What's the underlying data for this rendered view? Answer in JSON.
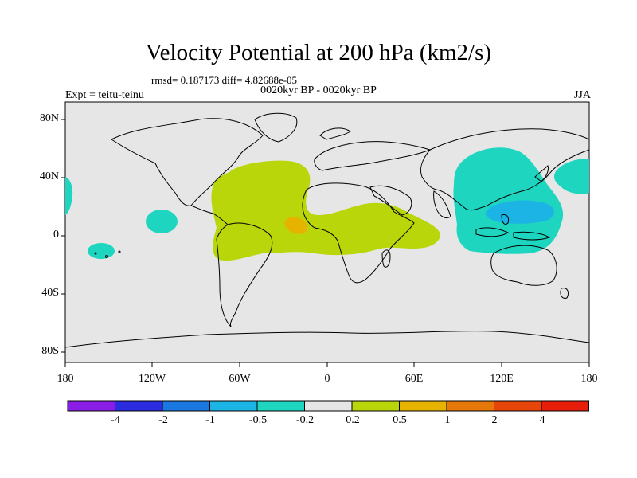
{
  "title": "Velocity Potential at 200 hPa (km2/s)",
  "stats_line": "rmsd= 0.187173 diff= 4.82688e-05",
  "left_label": "Expt = teitu-teinu",
  "center_label": "0020kyr BP - 0020kyr BP",
  "right_label": "JJA",
  "lat_labels": [
    "80N",
    "40N",
    "0",
    "40S",
    "80S"
  ],
  "lon_labels": [
    "180",
    "120W",
    "60W",
    "0",
    "60E",
    "120E",
    "180"
  ],
  "colorbar": {
    "labels": [
      "-4",
      "-2",
      "-1",
      "-0.5",
      "-0.2",
      "0.2",
      "0.5",
      "1",
      "2",
      "4"
    ],
    "colors": [
      "#8a1ee6",
      "#2b2be0",
      "#1b78e0",
      "#1cb4e4",
      "#1ed6c0",
      "#e6e6e6",
      "#b9d60a",
      "#e6b400",
      "#e6780a",
      "#e6460a",
      "#e61e0a"
    ]
  },
  "map_colors": {
    "background": "#e6e6e6",
    "positive_low": "#b9d60a",
    "positive_mid": "#e6b400",
    "negative_low": "#1ed6c0",
    "negative_mid": "#1cb4e4"
  }
}
